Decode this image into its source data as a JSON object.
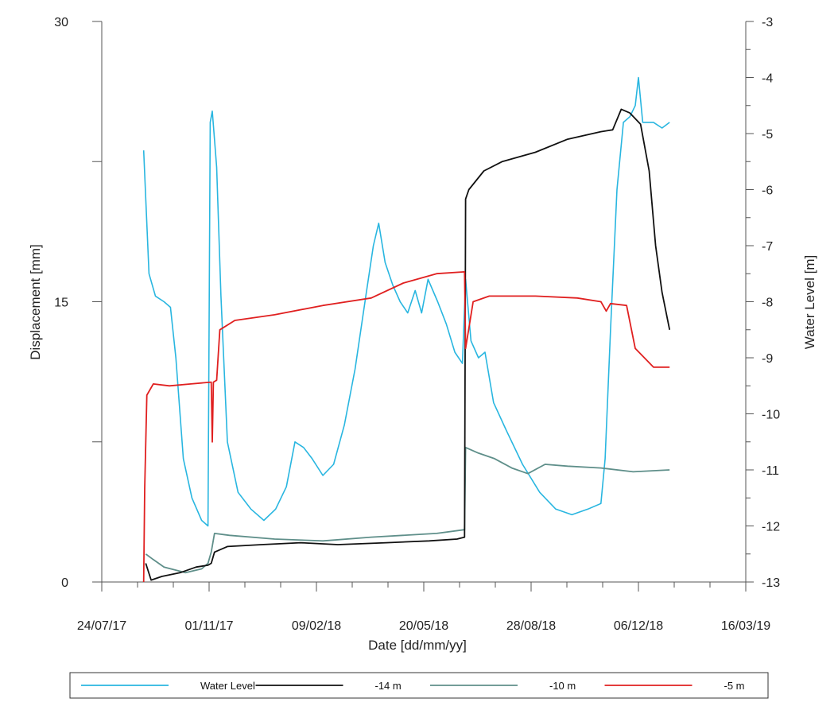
{
  "chart_data": {
    "type": "line",
    "xlabel": "Date [dd/mm/yy]",
    "ylabel_left": "Displacement [mm]",
    "ylabel_right": "Water Level [m]",
    "x_tick_labels": [
      "24/07/17",
      "01/11/17",
      "09/02/18",
      "20/05/18",
      "28/08/18",
      "06/12/18",
      "16/03/19"
    ],
    "xlim": [
      "2017-07-24",
      "2019-03-16"
    ],
    "ylim_left": [
      0,
      30
    ],
    "ylim_right": [
      -13,
      -3
    ],
    "y_left_ticks": [
      0,
      15,
      30
    ],
    "y_right_ticks": [
      -13,
      -12,
      -11,
      -10,
      -9,
      -8,
      -7,
      -6,
      -5,
      -4,
      -3
    ],
    "grid": false,
    "legend_position": "bottom",
    "series": [
      {
        "name": "Water Level",
        "axis": "right",
        "color": "#29b6e0",
        "points": [
          [
            "2017-09-01",
            -5.3
          ],
          [
            "2017-09-06",
            -7.5
          ],
          [
            "2017-09-12",
            -7.9
          ],
          [
            "2017-09-20",
            -8.0
          ],
          [
            "2017-09-26",
            -8.1
          ],
          [
            "2017-10-01",
            -9.0
          ],
          [
            "2017-10-08",
            -10.8
          ],
          [
            "2017-10-16",
            -11.5
          ],
          [
            "2017-10-25",
            -11.9
          ],
          [
            "2017-10-31",
            -12.0
          ],
          [
            "2017-11-02",
            -4.8
          ],
          [
            "2017-11-04",
            -4.6
          ],
          [
            "2017-11-08",
            -5.6
          ],
          [
            "2017-11-12",
            -7.9
          ],
          [
            "2017-11-18",
            -10.5
          ],
          [
            "2017-11-28",
            -11.4
          ],
          [
            "2017-12-10",
            -11.7
          ],
          [
            "2017-12-22",
            -11.9
          ],
          [
            "2018-01-02",
            -11.7
          ],
          [
            "2018-01-12",
            -11.3
          ],
          [
            "2018-01-20",
            -10.5
          ],
          [
            "2018-01-28",
            -10.6
          ],
          [
            "2018-02-05",
            -10.8
          ],
          [
            "2018-02-15",
            -11.1
          ],
          [
            "2018-02-25",
            -10.9
          ],
          [
            "2018-03-07",
            -10.2
          ],
          [
            "2018-03-17",
            -9.2
          ],
          [
            "2018-03-27",
            -7.9
          ],
          [
            "2018-04-03",
            -7.0
          ],
          [
            "2018-04-08",
            -6.6
          ],
          [
            "2018-04-14",
            -7.3
          ],
          [
            "2018-04-21",
            -7.7
          ],
          [
            "2018-04-28",
            -8.0
          ],
          [
            "2018-05-05",
            -8.2
          ],
          [
            "2018-05-12",
            -7.8
          ],
          [
            "2018-05-18",
            -8.2
          ],
          [
            "2018-05-24",
            -7.6
          ],
          [
            "2018-06-02",
            -8.0
          ],
          [
            "2018-06-10",
            -8.4
          ],
          [
            "2018-06-18",
            -8.9
          ],
          [
            "2018-06-25",
            -9.1
          ],
          [
            "2018-06-28",
            -7.6
          ],
          [
            "2018-07-03",
            -8.7
          ],
          [
            "2018-07-10",
            -9.0
          ],
          [
            "2018-07-16",
            -8.9
          ],
          [
            "2018-07-24",
            -9.8
          ],
          [
            "2018-08-05",
            -10.3
          ],
          [
            "2018-08-20",
            -10.9
          ],
          [
            "2018-09-05",
            -11.4
          ],
          [
            "2018-09-20",
            -11.7
          ],
          [
            "2018-10-05",
            -11.8
          ],
          [
            "2018-10-20",
            -11.7
          ],
          [
            "2018-11-01",
            -11.6
          ],
          [
            "2018-11-05",
            -10.8
          ],
          [
            "2018-11-10",
            -8.5
          ],
          [
            "2018-11-16",
            -6.0
          ],
          [
            "2018-11-22",
            -4.8
          ],
          [
            "2018-11-28",
            -4.7
          ],
          [
            "2018-12-03",
            -4.5
          ],
          [
            "2018-12-06",
            -4.0
          ],
          [
            "2018-12-10",
            -4.8
          ],
          [
            "2018-12-20",
            -4.8
          ],
          [
            "2018-12-28",
            -4.9
          ],
          [
            "2019-01-04",
            -4.8
          ]
        ]
      },
      {
        "name": "-14 m",
        "axis": "left",
        "color": "#111111",
        "points": [
          [
            "2017-09-03",
            1.0
          ],
          [
            "2017-09-08",
            0.1
          ],
          [
            "2017-09-18",
            0.3
          ],
          [
            "2017-10-05",
            0.5
          ],
          [
            "2017-10-20",
            0.8
          ],
          [
            "2017-10-31",
            0.9
          ],
          [
            "2017-11-03",
            1.0
          ],
          [
            "2017-11-06",
            1.6
          ],
          [
            "2017-11-18",
            1.9
          ],
          [
            "2017-12-20",
            2.0
          ],
          [
            "2018-01-25",
            2.1
          ],
          [
            "2018-03-01",
            2.0
          ],
          [
            "2018-04-15",
            2.1
          ],
          [
            "2018-05-25",
            2.2
          ],
          [
            "2018-06-20",
            2.3
          ],
          [
            "2018-06-27",
            2.4
          ],
          [
            "2018-06-28",
            20.5
          ],
          [
            "2018-07-01",
            21.0
          ],
          [
            "2018-07-15",
            22.0
          ],
          [
            "2018-08-01",
            22.5
          ],
          [
            "2018-09-01",
            23.0
          ],
          [
            "2018-10-01",
            23.7
          ],
          [
            "2018-11-01",
            24.1
          ],
          [
            "2018-11-12",
            24.2
          ],
          [
            "2018-11-20",
            25.3
          ],
          [
            "2018-11-28",
            25.1
          ],
          [
            "2018-12-08",
            24.5
          ],
          [
            "2018-12-16",
            22.0
          ],
          [
            "2018-12-22",
            18.0
          ],
          [
            "2018-12-28",
            15.5
          ],
          [
            "2019-01-04",
            13.5
          ]
        ]
      },
      {
        "name": "-10 m",
        "axis": "left",
        "color": "#5f8f8a",
        "points": [
          [
            "2017-09-03",
            1.5
          ],
          [
            "2017-09-10",
            1.2
          ],
          [
            "2017-09-20",
            0.8
          ],
          [
            "2017-10-10",
            0.5
          ],
          [
            "2017-10-25",
            0.7
          ],
          [
            "2017-10-31",
            1.0
          ],
          [
            "2017-11-03",
            1.6
          ],
          [
            "2017-11-06",
            2.6
          ],
          [
            "2017-11-20",
            2.5
          ],
          [
            "2018-01-01",
            2.3
          ],
          [
            "2018-02-15",
            2.2
          ],
          [
            "2018-04-01",
            2.4
          ],
          [
            "2018-06-01",
            2.6
          ],
          [
            "2018-06-27",
            2.8
          ],
          [
            "2018-06-28",
            7.2
          ],
          [
            "2018-07-10",
            6.9
          ],
          [
            "2018-07-25",
            6.6
          ],
          [
            "2018-08-10",
            6.1
          ],
          [
            "2018-08-25",
            5.8
          ],
          [
            "2018-09-10",
            6.3
          ],
          [
            "2018-10-01",
            6.2
          ],
          [
            "2018-11-01",
            6.1
          ],
          [
            "2018-12-01",
            5.9
          ],
          [
            "2019-01-04",
            6.0
          ]
        ]
      },
      {
        "name": "-5 m",
        "axis": "left",
        "color": "#e02020",
        "points": [
          [
            "2017-09-01",
            0.0
          ],
          [
            "2017-09-02",
            5.0
          ],
          [
            "2017-09-04",
            10.0
          ],
          [
            "2017-09-10",
            10.6
          ],
          [
            "2017-09-25",
            10.5
          ],
          [
            "2017-10-15",
            10.6
          ],
          [
            "2017-11-03",
            10.7
          ],
          [
            "2017-11-04",
            7.5
          ],
          [
            "2017-11-05",
            10.7
          ],
          [
            "2017-11-08",
            10.8
          ],
          [
            "2017-11-11",
            13.5
          ],
          [
            "2017-11-25",
            14.0
          ],
          [
            "2018-01-01",
            14.3
          ],
          [
            "2018-02-15",
            14.8
          ],
          [
            "2018-04-01",
            15.2
          ],
          [
            "2018-05-01",
            16.0
          ],
          [
            "2018-06-01",
            16.5
          ],
          [
            "2018-06-27",
            16.6
          ],
          [
            "2018-06-28",
            12.5
          ],
          [
            "2018-07-05",
            15.0
          ],
          [
            "2018-07-20",
            15.3
          ],
          [
            "2018-09-01",
            15.3
          ],
          [
            "2018-10-10",
            15.2
          ],
          [
            "2018-11-01",
            15.0
          ],
          [
            "2018-11-06",
            14.5
          ],
          [
            "2018-11-10",
            14.9
          ],
          [
            "2018-11-25",
            14.8
          ],
          [
            "2018-12-03",
            12.5
          ],
          [
            "2018-12-20",
            11.5
          ],
          [
            "2019-01-04",
            11.5
          ]
        ]
      }
    ]
  },
  "colors": {
    "axis": "#555555",
    "water_level": "#29b6e0",
    "minus14": "#111111",
    "minus10": "#5f8f8a",
    "minus5": "#e02020"
  }
}
